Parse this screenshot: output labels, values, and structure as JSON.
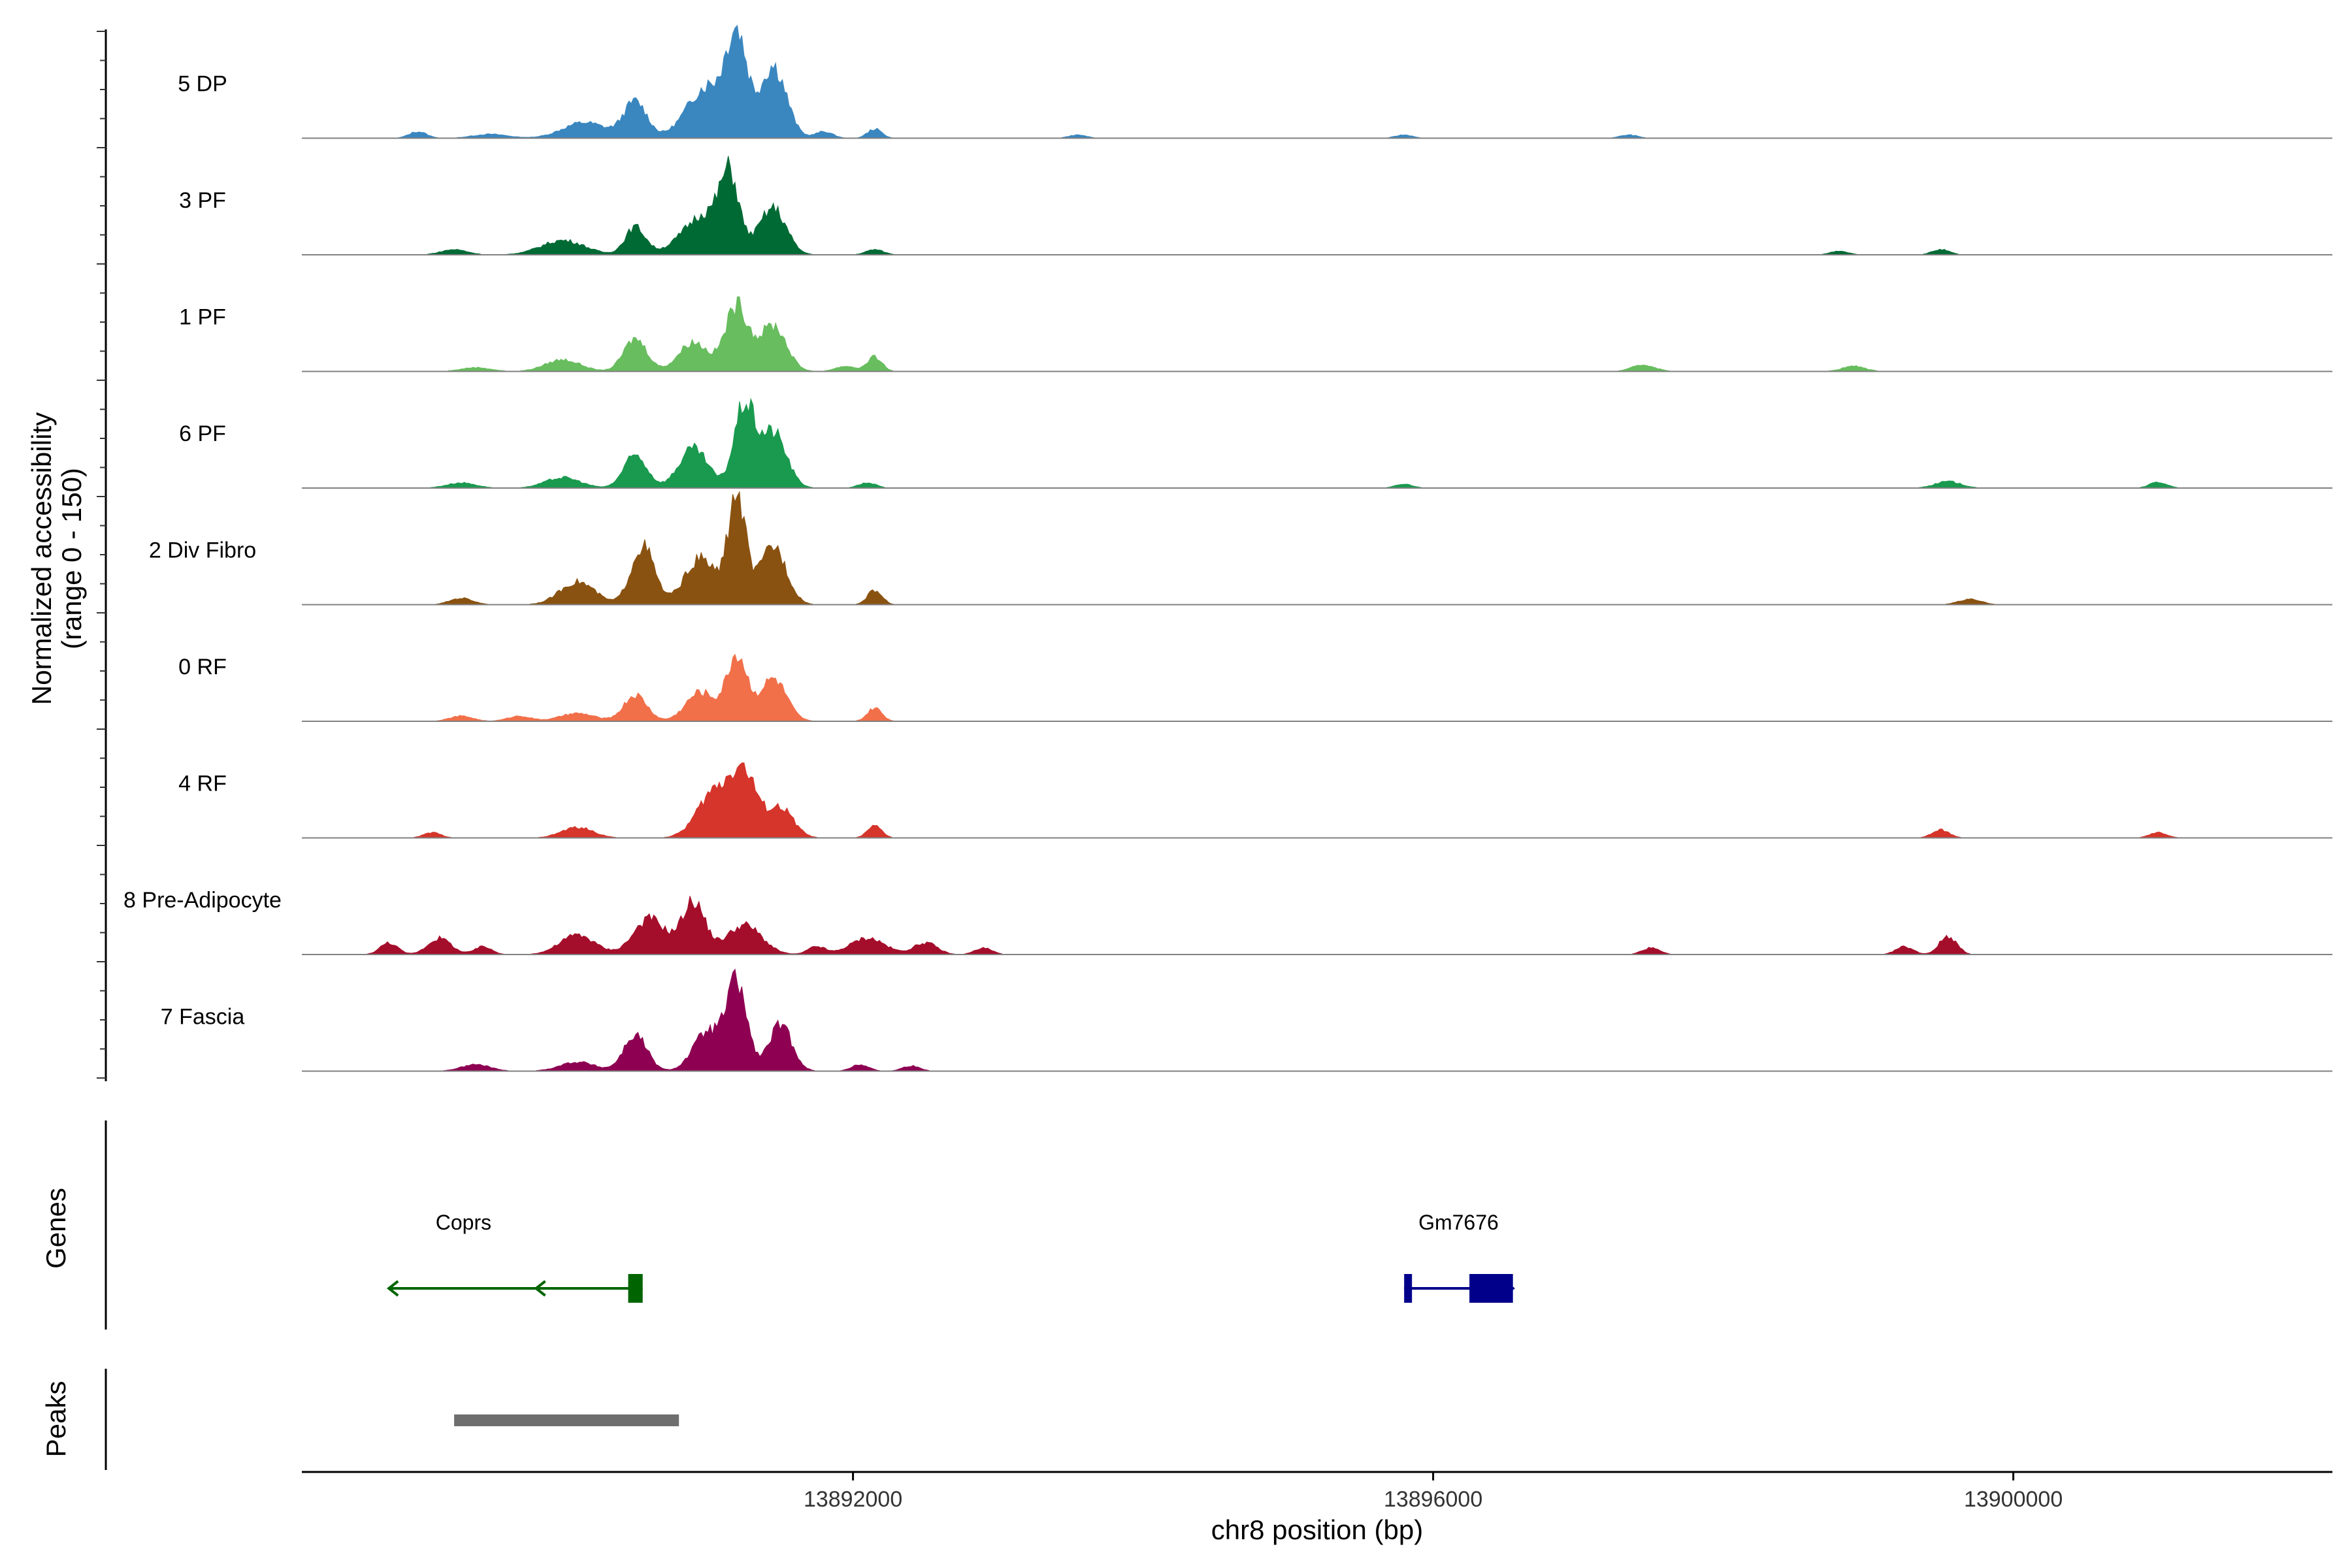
{
  "chart_data": {
    "type": "area",
    "y_axis_title_line1": "Normalized accessibility",
    "y_axis_title_line2": "(range 0 - 150)",
    "x_axis_title": "chr8 position (bp)",
    "xlim": [
      13888200,
      13902200
    ],
    "ylim": [
      0,
      150
    ],
    "x_ticks": [
      13892000,
      13896000,
      13900000
    ],
    "x_tick_labels": [
      "13892000",
      "13896000",
      "13900000"
    ],
    "grid": false,
    "series": [
      {
        "name": "5 DP",
        "color": "#3a87c0",
        "peaks": [
          {
            "center": 13889000,
            "width": 60,
            "height": 10
          },
          {
            "center": 13889500,
            "width": 120,
            "height": 6
          },
          {
            "center": 13890150,
            "width": 150,
            "height": 24
          },
          {
            "center": 13890500,
            "width": 80,
            "height": 55
          },
          {
            "center": 13891000,
            "width": 140,
            "height": 80
          },
          {
            "center": 13891200,
            "width": 70,
            "height": 140
          },
          {
            "center": 13891450,
            "width": 90,
            "height": 110
          },
          {
            "center": 13891800,
            "width": 60,
            "height": 10
          },
          {
            "center": 13892150,
            "width": 50,
            "height": 14
          },
          {
            "center": 13893550,
            "width": 60,
            "height": 5
          },
          {
            "center": 13895800,
            "width": 60,
            "height": 5
          },
          {
            "center": 13897350,
            "width": 60,
            "height": 5
          }
        ]
      },
      {
        "name": "3 PF",
        "color": "#006a35",
        "peaks": [
          {
            "center": 13889250,
            "width": 90,
            "height": 8
          },
          {
            "center": 13890000,
            "width": 150,
            "height": 22
          },
          {
            "center": 13890500,
            "width": 70,
            "height": 42
          },
          {
            "center": 13891000,
            "width": 160,
            "height": 65
          },
          {
            "center": 13891150,
            "width": 60,
            "height": 90
          },
          {
            "center": 13891450,
            "width": 90,
            "height": 70
          },
          {
            "center": 13892150,
            "width": 60,
            "height": 8
          },
          {
            "center": 13898800,
            "width": 60,
            "height": 6
          },
          {
            "center": 13899500,
            "width": 60,
            "height": 8
          }
        ]
      },
      {
        "name": "1 PF",
        "color": "#68bd5e",
        "peaks": [
          {
            "center": 13889400,
            "width": 100,
            "height": 6
          },
          {
            "center": 13890000,
            "width": 120,
            "height": 18
          },
          {
            "center": 13890500,
            "width": 80,
            "height": 50
          },
          {
            "center": 13890900,
            "width": 100,
            "height": 45
          },
          {
            "center": 13891200,
            "width": 80,
            "height": 100
          },
          {
            "center": 13891450,
            "width": 90,
            "height": 70
          },
          {
            "center": 13891950,
            "width": 70,
            "height": 8
          },
          {
            "center": 13892150,
            "width": 50,
            "height": 22
          },
          {
            "center": 13897450,
            "width": 80,
            "height": 10
          },
          {
            "center": 13898900,
            "width": 80,
            "height": 8
          }
        ]
      },
      {
        "name": "6 PF",
        "color": "#1a9a4f",
        "peaks": [
          {
            "center": 13889300,
            "width": 100,
            "height": 8
          },
          {
            "center": 13890000,
            "width": 120,
            "height": 16
          },
          {
            "center": 13890500,
            "width": 80,
            "height": 50
          },
          {
            "center": 13890900,
            "width": 100,
            "height": 60
          },
          {
            "center": 13891250,
            "width": 70,
            "height": 125
          },
          {
            "center": 13891450,
            "width": 90,
            "height": 85
          },
          {
            "center": 13892100,
            "width": 60,
            "height": 8
          },
          {
            "center": 13895800,
            "width": 60,
            "height": 6
          },
          {
            "center": 13899550,
            "width": 90,
            "height": 10
          },
          {
            "center": 13901000,
            "width": 60,
            "height": 9
          }
        ]
      },
      {
        "name": "2 Div Fibro",
        "color": "#8a5211",
        "peaks": [
          {
            "center": 13889300,
            "width": 80,
            "height": 10
          },
          {
            "center": 13890100,
            "width": 120,
            "height": 35
          },
          {
            "center": 13890550,
            "width": 80,
            "height": 90
          },
          {
            "center": 13890950,
            "width": 110,
            "height": 70
          },
          {
            "center": 13891200,
            "width": 60,
            "height": 165
          },
          {
            "center": 13891450,
            "width": 90,
            "height": 90
          },
          {
            "center": 13892150,
            "width": 50,
            "height": 22
          },
          {
            "center": 13899700,
            "width": 80,
            "height": 8
          }
        ]
      },
      {
        "name": "0 RF",
        "color": "#f1704a",
        "peaks": [
          {
            "center": 13889300,
            "width": 80,
            "height": 8
          },
          {
            "center": 13889700,
            "width": 80,
            "height": 8
          },
          {
            "center": 13890100,
            "width": 120,
            "height": 12
          },
          {
            "center": 13890500,
            "width": 80,
            "height": 40
          },
          {
            "center": 13890950,
            "width": 100,
            "height": 45
          },
          {
            "center": 13891200,
            "width": 70,
            "height": 100
          },
          {
            "center": 13891450,
            "width": 90,
            "height": 65
          },
          {
            "center": 13892150,
            "width": 50,
            "height": 20
          }
        ]
      },
      {
        "name": "4 RF",
        "color": "#d5352a",
        "peaks": [
          {
            "center": 13889100,
            "width": 60,
            "height": 8
          },
          {
            "center": 13890100,
            "width": 110,
            "height": 16
          },
          {
            "center": 13891050,
            "width": 120,
            "height": 70
          },
          {
            "center": 13891250,
            "width": 90,
            "height": 90
          },
          {
            "center": 13891500,
            "width": 90,
            "height": 45
          },
          {
            "center": 13892150,
            "width": 50,
            "height": 18
          },
          {
            "center": 13899500,
            "width": 60,
            "height": 12
          },
          {
            "center": 13901000,
            "width": 60,
            "height": 8
          }
        ]
      },
      {
        "name": "8 Pre-Adipocyte",
        "color": "#a50e2b",
        "peaks": [
          {
            "center": 13888800,
            "width": 60,
            "height": 18
          },
          {
            "center": 13889150,
            "width": 80,
            "height": 25
          },
          {
            "center": 13889450,
            "width": 60,
            "height": 12
          },
          {
            "center": 13890100,
            "width": 120,
            "height": 30
          },
          {
            "center": 13890600,
            "width": 110,
            "height": 55
          },
          {
            "center": 13890900,
            "width": 80,
            "height": 80
          },
          {
            "center": 13891250,
            "width": 120,
            "height": 45
          },
          {
            "center": 13891750,
            "width": 60,
            "height": 12
          },
          {
            "center": 13892100,
            "width": 120,
            "height": 25
          },
          {
            "center": 13892500,
            "width": 80,
            "height": 18
          },
          {
            "center": 13892900,
            "width": 60,
            "height": 10
          },
          {
            "center": 13897500,
            "width": 60,
            "height": 10
          },
          {
            "center": 13899250,
            "width": 60,
            "height": 12
          },
          {
            "center": 13899550,
            "width": 60,
            "height": 28
          }
        ]
      },
      {
        "name": "7 Fascia",
        "color": "#8e0152",
        "peaks": [
          {
            "center": 13889400,
            "width": 100,
            "height": 10
          },
          {
            "center": 13890100,
            "width": 120,
            "height": 14
          },
          {
            "center": 13890500,
            "width": 80,
            "height": 55
          },
          {
            "center": 13891000,
            "width": 100,
            "height": 60
          },
          {
            "center": 13891200,
            "width": 70,
            "height": 130
          },
          {
            "center": 13891500,
            "width": 80,
            "height": 70
          },
          {
            "center": 13892050,
            "width": 60,
            "height": 10
          },
          {
            "center": 13892400,
            "width": 60,
            "height": 8
          }
        ]
      }
    ],
    "genes": [
      {
        "name": "Coprs",
        "color": "#006400",
        "strand": "-",
        "start": 13888800,
        "end": 13890550,
        "exons": [
          [
            13890450,
            13890550
          ]
        ]
      },
      {
        "name": "Gm7676",
        "color": "#00008b",
        "strand": "+",
        "start": 13895800,
        "end": 13896550,
        "exons": [
          [
            13895800,
            13895850
          ],
          [
            13896250,
            13896550
          ]
        ]
      }
    ],
    "peaks": [
      {
        "start": 13889250,
        "end": 13890800,
        "color": "#6e6e6e"
      }
    ]
  }
}
